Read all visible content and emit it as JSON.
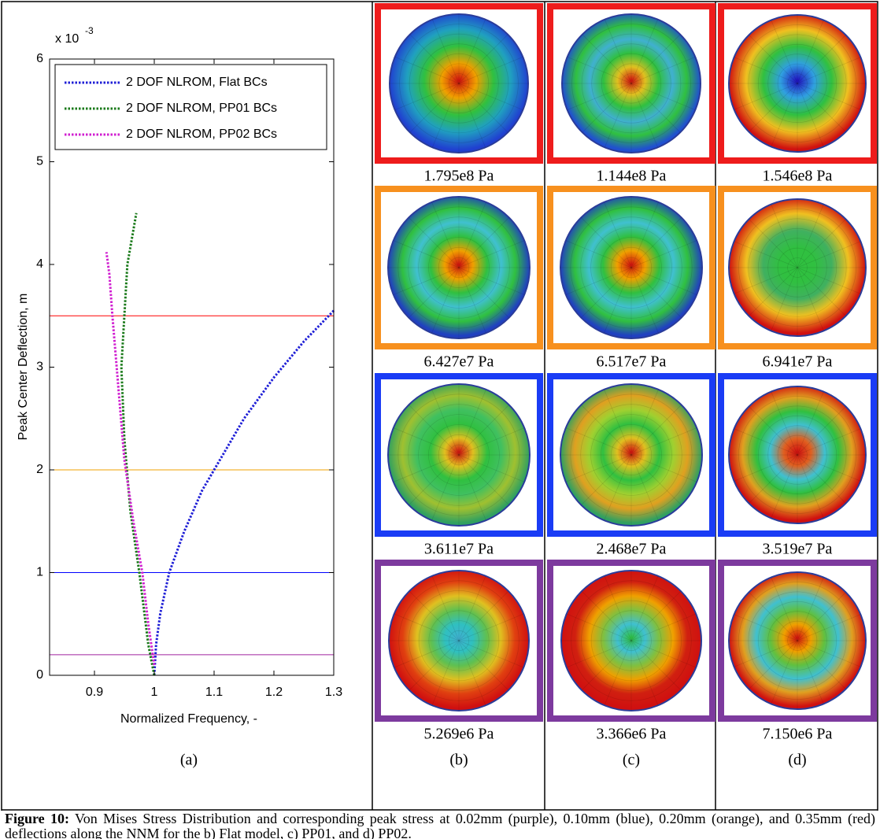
{
  "chart_data": {
    "type": "line",
    "xlabel": "Normalized Frequency, -",
    "ylabel": "Peak Center Deflection, m",
    "y_exponent_base": "x 10",
    "y_exponent": "-3",
    "label": "(a)",
    "xlim": [
      0.825,
      1.3
    ],
    "ylim": [
      0,
      6
    ],
    "xticks": [
      0.9,
      1,
      1.1,
      1.2,
      1.3
    ],
    "yticks": [
      0,
      1,
      2,
      3,
      4,
      5,
      6
    ],
    "legend": "upper left",
    "series": [
      {
        "name": "2 DOF NLROM, Flat BCs",
        "color": "#1f1fd6",
        "x": [
          1.0,
          1.003,
          1.01,
          1.025,
          1.05,
          1.08,
          1.1,
          1.15,
          1.2,
          1.25,
          1.3
        ],
        "values": [
          0,
          0.3,
          0.6,
          1.0,
          1.4,
          1.8,
          2.0,
          2.5,
          2.9,
          3.25,
          3.55
        ]
      },
      {
        "name": "2 DOF NLROM, PP01 BCs",
        "color": "#1a7a1a",
        "x": [
          1.0,
          0.99,
          0.975,
          0.96,
          0.95,
          0.945,
          0.95,
          0.955,
          0.97
        ],
        "values": [
          0,
          0.3,
          1.0,
          1.6,
          2.3,
          3.0,
          3.5,
          4.0,
          4.5
        ]
      },
      {
        "name": "2 DOF NLROM, PP02 BCs",
        "color": "#d01fd0",
        "x": [
          1.0,
          0.99,
          0.98,
          0.965,
          0.95,
          0.94,
          0.93,
          0.925,
          0.92
        ],
        "values": [
          0.1,
          0.5,
          1.0,
          1.5,
          2.1,
          2.8,
          3.5,
          3.9,
          4.12
        ]
      }
    ],
    "hlines": [
      {
        "value": 3.5,
        "color": "#ff0000"
      },
      {
        "value": 2,
        "color": "#f0a000"
      },
      {
        "value": 1,
        "color": "#0000ff"
      },
      {
        "value": 0.2,
        "color": "#a0209f"
      }
    ]
  },
  "row_colors": [
    "#ee1c1c",
    "#f7901e",
    "#1a3cf5",
    "#7d3a9e"
  ],
  "panels": [
    {
      "label": "(b)",
      "stresses": [
        "1.795e8 Pa",
        "6.427e7 Pa",
        "3.611e7 Pa",
        "5.269e6 Pa"
      ]
    },
    {
      "label": "(c)",
      "stresses": [
        "1.144e8 Pa",
        "6.517e7 Pa",
        "2.468e7 Pa",
        "3.366e6 Pa"
      ]
    },
    {
      "label": "(d)",
      "stresses": [
        "1.546e8 Pa",
        "6.941e7 Pa",
        "3.519e7 Pa",
        "7.150e6 Pa"
      ]
    }
  ],
  "caption": {
    "label": "Figure 10:",
    "text": "Von Mises Stress Distribution and corresponding peak stress at 0.02mm (purple), 0.10mm (blue), 0.20mm (orange), and 0.35mm (red) deflections along the NNM for the b) Flat model, c) PP01, and d) PP02."
  }
}
